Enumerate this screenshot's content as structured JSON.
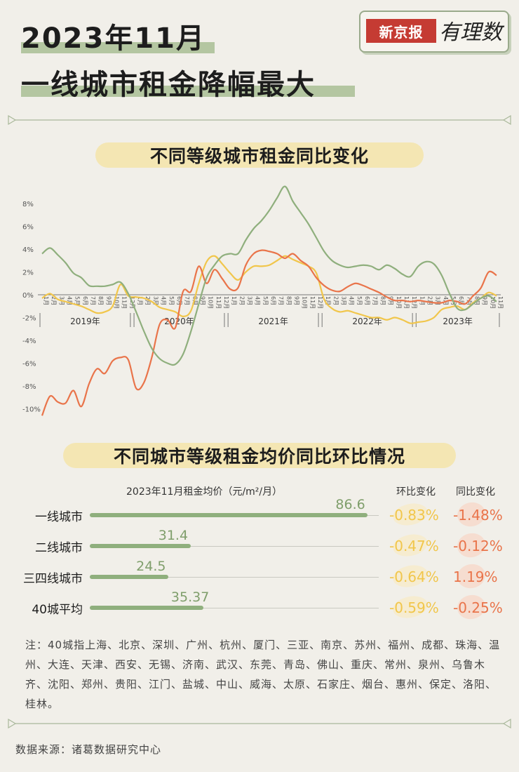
{
  "header": {
    "title_line1": "2023年11月",
    "title_line2": "一线城市租金降幅最大",
    "logo_left": "新京报",
    "logo_right": "有理数"
  },
  "colors": {
    "tier1": "#8faf7d",
    "tier2": "#e9744a",
    "tier34": "#f1c64b",
    "bar": "#8faf7d",
    "mom": "#f1c64b",
    "yoy": "#e9744a"
  },
  "chart_data": [
    {
      "type": "line",
      "title": "不同等级城市租金同比变化",
      "ylim": [
        -10,
        10
      ],
      "yticks": [
        8,
        6,
        4,
        2,
        0,
        -2,
        -4,
        -6,
        -8,
        -10
      ],
      "ytick_labels": [
        "8%",
        "6%",
        "4%",
        "2%",
        "0%",
        "-2%",
        "-4%",
        "-6%",
        "-8%",
        "-10%"
      ],
      "years": [
        "2019年",
        "2020年",
        "2021年",
        "2022年",
        "2023年"
      ],
      "month_labels": [
        "1月",
        "2月",
        "3月",
        "4月",
        "5月",
        "6月",
        "7月",
        "8月",
        "9月",
        "10月",
        "11月",
        "12月"
      ],
      "month_labels_2023": [
        "1月",
        "2月",
        "3月",
        "4月",
        "5月",
        "6月",
        "7月",
        "8月",
        "9月",
        "10月",
        "11月"
      ],
      "grid": false,
      "series": [
        {
          "values": [
            3.6,
            4.1,
            3.5,
            2.8,
            1.9,
            1.5,
            0.8,
            0.75,
            0.75,
            0.9,
            1.1,
            0.1,
            -1.5,
            -3.2,
            -4.7,
            -5.6,
            -6.0,
            -6.1,
            -5.2,
            -3.2,
            -0.8,
            1.5,
            2.6,
            3.4,
            3.6,
            3.6,
            4.8,
            5.8,
            6.5,
            7.4,
            8.5,
            9.5,
            8.2,
            7.2,
            6.2,
            5.0,
            3.8,
            3.0,
            2.6,
            2.4,
            2.5,
            2.6,
            2.5,
            2.2,
            2.6,
            2.3,
            1.8,
            1.6,
            2.5,
            2.9,
            2.7,
            1.7,
            0.1,
            -1.2,
            -1.3,
            -0.8,
            -0.3,
            -0.1,
            -0.6
          ]
        },
        {
          "values": [
            -10.6,
            -8.9,
            -9.4,
            -9.5,
            -8.4,
            -9.8,
            -7.8,
            -6.5,
            -6.9,
            -5.8,
            -5.5,
            -5.7,
            -8.2,
            -7.7,
            -5.5,
            -2.6,
            -2.2,
            -2.9,
            0.3,
            0.3,
            2.5,
            1.0,
            2.2,
            1.4,
            0.5,
            0.6,
            2.6,
            3.6,
            3.9,
            3.8,
            3.6,
            3.2,
            3.6,
            3.0,
            2.5,
            1.5,
            0.8,
            0.4,
            0.3,
            0.7,
            1.0,
            0.8,
            0.5,
            0.2,
            -0.2,
            -0.5,
            -0.5,
            -0.6,
            -0.5,
            -0.6,
            -0.7,
            -0.7,
            -0.5,
            -0.6,
            -0.8,
            -0.1,
            0.6,
            2.0,
            1.7
          ]
        },
        {
          "values": [
            -0.3,
            0.1,
            -0.4,
            -0.6,
            -0.8,
            -1.0,
            -1.3,
            -1.6,
            -1.5,
            -1.0,
            0.9,
            -0.1,
            -0.2,
            -0.3,
            -0.6,
            -1.1,
            -1.3,
            -1.5,
            -1.9,
            -1.4,
            1.0,
            2.9,
            3.4,
            2.7,
            1.9,
            1.3,
            2.0,
            2.5,
            2.5,
            2.6,
            3.0,
            3.4,
            3.1,
            2.8,
            2.5,
            1.9,
            -0.4,
            -1.2,
            -1.5,
            -1.4,
            -1.6,
            -1.8,
            -2.0,
            -2.0,
            -2.2,
            -2.0,
            -2.2,
            -2.5,
            -2.4,
            -2.3,
            -2.0,
            -1.3,
            -1.1,
            -1.0,
            -1.3,
            -0.7,
            -0.3,
            0.2,
            -0.1
          ]
        }
      ]
    },
    {
      "type": "bar",
      "title": "不同城市等级租金均价同比环比情况",
      "column_title": "2023年11月租金均价（元/m²/月）",
      "mom_header": "环比变化",
      "yoy_header": "同比变化",
      "xlim": [
        0,
        90
      ],
      "categories": [
        "一线城市",
        "二线城市",
        "三四线城市",
        "40城平均"
      ],
      "values": [
        86.6,
        31.4,
        24.5,
        35.37
      ],
      "value_labels": [
        "86.6",
        "31.4",
        "24.5",
        "35.37"
      ],
      "mom": [
        "-0.83%",
        "-0.47%",
        "-0.64%",
        "-0.59%"
      ],
      "yoy": [
        "-1.48%",
        "-0.12%",
        "1.19%",
        "-0.25%"
      ]
    }
  ],
  "note": "注：40城指上海、北京、深圳、广州、杭州、厦门、三亚、南京、苏州、福州、成都、珠海、温州、大连、天津、西安、无锡、济南、武汉、东莞、青岛、佛山、重庆、常州、泉州、乌鲁木齐、沈阳、郑州、贵阳、江门、盐城、中山、威海、太原、石家庄、烟台、惠州、保定、洛阳、桂林。",
  "source": "数据来源：诸葛数据研究中心"
}
